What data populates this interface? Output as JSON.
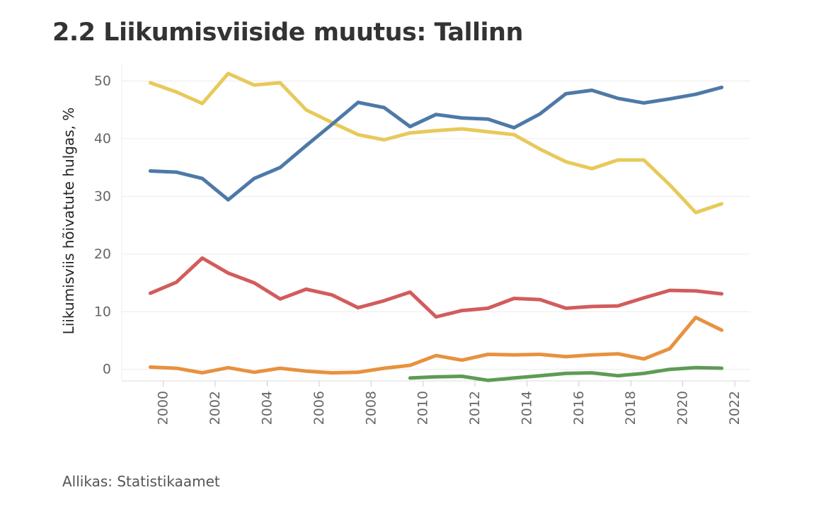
{
  "title": "2.2 Liikumisviiside muutus: Tallinn",
  "source": "Allikas: Statistikaamet",
  "chart_data": {
    "type": "line",
    "ylabel": "Liikumisviis hõivatute hulgas, %",
    "xlabel": "",
    "ylim": [
      -2,
      53
    ],
    "xlim": [
      1998.4,
      2022.6
    ],
    "yticks": [
      0,
      10,
      20,
      30,
      40,
      50
    ],
    "xticks": [
      2000,
      2002,
      2004,
      2006,
      2008,
      2010,
      2012,
      2014,
      2016,
      2018,
      2020,
      2022
    ],
    "grid": true,
    "legend": "none",
    "series": [
      {
        "color": "#e8c95a",
        "x": [
          1999.5,
          2000.5,
          2001.5,
          2002.5,
          2003.5,
          2004.5,
          2005.5,
          2006.5,
          2007.5,
          2008.5,
          2009.5,
          2010.5,
          2011.5,
          2012.5,
          2013.5,
          2014.5,
          2015.5,
          2016.5,
          2017.5,
          2018.5,
          2019.5,
          2020.5,
          2021.5
        ],
        "values": [
          49.7,
          48.1,
          46.1,
          51.3,
          49.3,
          49.7,
          45.0,
          42.8,
          40.7,
          39.8,
          41.0,
          41.4,
          41.7,
          41.2,
          40.7,
          38.2,
          36.0,
          34.8,
          36.3,
          36.3,
          32.0,
          27.2,
          28.7
        ]
      },
      {
        "color": "#4e79a7",
        "x": [
          1999.5,
          2000.5,
          2001.5,
          2002.5,
          2003.5,
          2004.5,
          2005.5,
          2006.5,
          2007.5,
          2008.5,
          2009.5,
          2010.5,
          2011.5,
          2012.5,
          2013.5,
          2014.5,
          2015.5,
          2016.5,
          2017.5,
          2018.5,
          2019.5,
          2020.5,
          2021.5
        ],
        "values": [
          34.4,
          34.2,
          33.1,
          29.4,
          33.1,
          35.0,
          38.8,
          42.5,
          46.3,
          45.4,
          42.1,
          44.2,
          43.6,
          43.4,
          41.9,
          44.3,
          47.8,
          48.4,
          47.0,
          46.2,
          46.9,
          47.7,
          48.9
        ]
      },
      {
        "color": "#d25c5c",
        "x": [
          1999.5,
          2000.5,
          2001.5,
          2002.5,
          2003.5,
          2004.5,
          2005.5,
          2006.5,
          2007.5,
          2008.5,
          2009.5,
          2010.5,
          2011.5,
          2012.5,
          2013.5,
          2014.5,
          2015.5,
          2016.5,
          2017.5,
          2018.5,
          2019.5,
          2020.5,
          2021.5
        ],
        "values": [
          13.2,
          15.1,
          19.3,
          16.7,
          15.0,
          12.2,
          13.9,
          12.9,
          10.7,
          11.9,
          13.4,
          9.1,
          10.2,
          10.6,
          12.3,
          12.1,
          10.6,
          10.9,
          11.0,
          12.4,
          13.7,
          13.6,
          13.1
        ]
      },
      {
        "color": "#e8913f",
        "x": [
          1999.5,
          2000.5,
          2001.5,
          2002.5,
          2003.5,
          2004.5,
          2005.5,
          2006.5,
          2007.5,
          2008.5,
          2009.5,
          2010.5,
          2011.5,
          2012.5,
          2013.5,
          2014.5,
          2015.5,
          2016.5,
          2017.5,
          2018.5,
          2019.5,
          2020.5,
          2021.5
        ],
        "values": [
          0.4,
          0.2,
          -0.6,
          0.3,
          -0.5,
          0.2,
          -0.3,
          -0.6,
          -0.5,
          0.2,
          0.7,
          2.4,
          1.6,
          2.6,
          2.5,
          2.6,
          2.2,
          2.5,
          2.7,
          1.8,
          3.6,
          9.0,
          6.8
        ]
      },
      {
        "color": "#5e9b55",
        "x": [
          2009.5,
          2010.5,
          2011.5,
          2012.5,
          2013.5,
          2014.5,
          2015.5,
          2016.5,
          2017.5,
          2018.5,
          2019.5,
          2020.5,
          2021.5
        ],
        "values": [
          -1.5,
          -1.3,
          -1.2,
          -1.9,
          -1.5,
          -1.1,
          -0.7,
          -0.6,
          -1.1,
          -0.7,
          0.0,
          0.3,
          0.2
        ]
      }
    ]
  }
}
